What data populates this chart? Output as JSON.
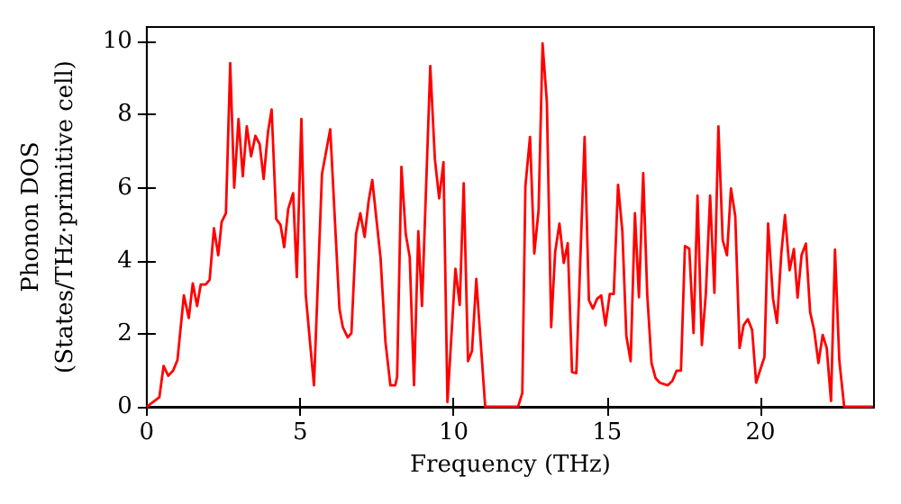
{
  "chart_data": {
    "type": "line",
    "xlabel": "Frequency (THz)",
    "ylabel": "Phonon DOS\n(States/THz·primitive cell)",
    "xlim": [
      0,
      23.7
    ],
    "ylim": [
      0,
      10.4
    ],
    "xticks": [
      0,
      5,
      10,
      15,
      20
    ],
    "yticks": [
      0,
      2,
      4,
      6,
      8,
      10
    ],
    "grid": false,
    "marker": "none",
    "line_style": "solid",
    "series": [
      {
        "color": "#ff0000",
        "x": [
          0,
          0.41,
          0.55,
          0.7,
          0.86,
          1.0,
          1.21,
          1.37,
          1.5,
          1.64,
          1.76,
          1.92,
          2.05,
          2.19,
          2.33,
          2.44,
          2.58,
          2.72,
          2.85,
          2.99,
          3.13,
          3.26,
          3.4,
          3.54,
          3.68,
          3.81,
          3.95,
          4.07,
          4.22,
          4.36,
          4.48,
          4.61,
          4.77,
          4.89,
          5.04,
          5.18,
          5.32,
          5.45,
          5.71,
          5.98,
          6.28,
          6.39,
          6.55,
          6.67,
          6.82,
          6.96,
          7.1,
          7.23,
          7.35,
          7.62,
          7.78,
          7.94,
          8.1,
          8.16,
          8.3,
          8.44,
          8.57,
          8.71,
          8.85,
          8.97,
          9.24,
          9.39,
          9.53,
          9.67,
          9.8,
          10.06,
          10.2,
          10.33,
          10.47,
          10.6,
          10.74,
          11.03,
          12.1,
          12.24,
          12.34,
          12.49,
          12.63,
          12.77,
          12.9,
          13.04,
          13.18,
          13.31,
          13.45,
          13.59,
          13.72,
          13.86,
          14.0,
          14.27,
          14.41,
          14.54,
          14.68,
          14.81,
          14.95,
          15.09,
          15.22,
          15.36,
          15.5,
          15.63,
          15.77,
          15.91,
          16.04,
          16.18,
          16.31,
          16.45,
          16.58,
          16.72,
          16.98,
          17.13,
          17.27,
          17.41,
          17.54,
          17.68,
          17.82,
          17.95,
          18.09,
          18.22,
          18.36,
          18.5,
          18.63,
          18.77,
          18.91,
          19.04,
          19.18,
          19.32,
          19.45,
          19.59,
          19.73,
          19.86,
          20.0,
          20.13,
          20.25,
          20.41,
          20.54,
          20.68,
          20.8,
          20.95,
          21.09,
          21.21,
          21.34,
          21.48,
          21.62,
          21.75,
          21.89,
          22.03,
          22.16,
          22.3,
          22.43,
          22.57,
          22.73,
          23.66
        ],
        "values": [
          0,
          0.26,
          1.12,
          0.85,
          0.99,
          1.28,
          3.05,
          2.43,
          3.38,
          2.76,
          3.35,
          3.35,
          3.48,
          4.89,
          4.15,
          5.06,
          5.3,
          9.41,
          6.0,
          7.88,
          6.31,
          7.68,
          6.86,
          7.42,
          7.19,
          6.24,
          7.52,
          8.14,
          5.14,
          4.98,
          4.37,
          5.42,
          5.85,
          3.55,
          7.88,
          3.09,
          1.77,
          0.59,
          6.37,
          7.6,
          2.68,
          2.18,
          1.9,
          2.02,
          4.73,
          5.3,
          4.65,
          5.63,
          6.21,
          4.07,
          1.77,
          0.59,
          0.59,
          0.82,
          6.57,
          4.73,
          4.1,
          0.59,
          4.81,
          2.76,
          9.33,
          6.78,
          5.71,
          6.7,
          0.13,
          3.78,
          2.79,
          6.12,
          1.25,
          1.53,
          3.5,
          0,
          0,
          0.38,
          6.04,
          7.39,
          4.2,
          5.39,
          9.95,
          8.34,
          2.18,
          4.24,
          5.02,
          3.94,
          4.48,
          0.95,
          0.92,
          7.39,
          2.92,
          2.69,
          2.96,
          3.05,
          2.23,
          3.09,
          3.09,
          6.08,
          4.81,
          1.94,
          1.25,
          5.3,
          3.0,
          6.4,
          3.09,
          1.2,
          0.79,
          0.66,
          0.59,
          0.71,
          0.99,
          0.99,
          4.4,
          4.33,
          2.02,
          5.78,
          1.69,
          3.09,
          5.78,
          3.12,
          7.68,
          4.56,
          4.15,
          5.98,
          5.22,
          1.61,
          2.23,
          2.4,
          2.1,
          0.66,
          1.03,
          1.36,
          5.02,
          2.96,
          2.3,
          4.2,
          5.25,
          3.74,
          4.32,
          2.99,
          4.15,
          4.47,
          2.59,
          2.1,
          1.2,
          1.97,
          1.61,
          0.16,
          4.3,
          1.28,
          0,
          0
        ]
      }
    ]
  }
}
